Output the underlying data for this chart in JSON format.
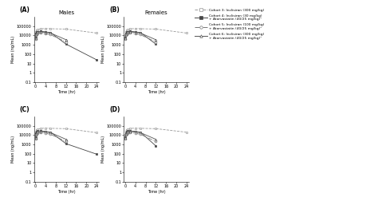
{
  "title_A": "Males",
  "title_B": "Females",
  "panel_labels": [
    "(A)",
    "(B)",
    "(C)",
    "(D)"
  ],
  "xlabel": "Time (hr)",
  "ylabel_top": "Mean (ng/mL)",
  "ylabel_bottom": "Mean (ng/mL)",
  "ylim_log": [
    0.1,
    1000000
  ],
  "xlim": [
    -0.5,
    25
  ],
  "xticks": [
    0,
    4,
    8,
    12,
    16,
    20,
    24
  ],
  "legend_labels": [
    "-- Cohort 3: Inclisiran (300 mg/kg)",
    "Cohort 4: Inclisiran (30 mg/kg)\n+ Atorvastatin (40/25 mg/kg)¹",
    "Cohort 5: Inclisiran (100 mg/kg)\n+ Atorvastatin (40/25 mg/kg)¹",
    "Cohort 6: Inclisiran (300 mg/kg)\n+ Atorvastatin (40/25 mg/kg)¹"
  ],
  "legend_labels_short": [
    "Cohort 3: Inclisiran (300 mg/kg)",
    "Cohort 4: Inclisiran (30 mg/kg)\n+ Atorvastatin (40/25 mg/kg)¹",
    "Cohort 5: Inclisiran (100 mg/kg)\n+ Atorvastatin (40/25 mg/kg)¹",
    "Cohort 6: Inclisiran (300 mg/kg)\n+ Atorvastatin (40/25 mg/kg)¹"
  ],
  "time_points": [
    0.08,
    0.25,
    0.5,
    1,
    2,
    4,
    6,
    12,
    24
  ],
  "A_cohort3": [
    10000,
    25000,
    35000,
    42000,
    50000,
    55000,
    52000,
    48000,
    18000
  ],
  "A_cohort4": [
    6000,
    16000,
    22000,
    26000,
    28000,
    24000,
    20000,
    1200,
    25
  ],
  "A_cohort5": [
    4000,
    10000,
    14000,
    17000,
    18000,
    15000,
    12000,
    2000,
    null
  ],
  "A_cohort6": [
    5000,
    13000,
    19000,
    23000,
    24000,
    21000,
    18000,
    3500,
    null
  ],
  "B_cohort3": [
    10000,
    25000,
    35000,
    42000,
    50000,
    55000,
    52000,
    48000,
    18000
  ],
  "B_cohort4": [
    6000,
    16000,
    22000,
    26000,
    28000,
    24000,
    20000,
    1200,
    null
  ],
  "B_cohort5": [
    4000,
    10000,
    14000,
    17000,
    18000,
    15000,
    12000,
    2000,
    null
  ],
  "B_cohort6": [
    5000,
    13000,
    19000,
    23000,
    24000,
    21000,
    18000,
    3500,
    null
  ],
  "C_cohort3": [
    10000,
    25000,
    35000,
    42000,
    50000,
    55000,
    52000,
    48000,
    18000
  ],
  "C_cohort4": [
    6000,
    16000,
    22000,
    26000,
    28000,
    24000,
    20000,
    1200,
    90
  ],
  "C_cohort5": [
    4000,
    10000,
    14000,
    17000,
    18000,
    15000,
    12000,
    2000,
    null
  ],
  "C_cohort6": [
    5000,
    13000,
    19000,
    23000,
    24000,
    21000,
    18000,
    3500,
    null
  ],
  "D_cohort3": [
    10000,
    25000,
    35000,
    42000,
    50000,
    55000,
    52000,
    48000,
    20000
  ],
  "D_cohort4": [
    6000,
    16000,
    22000,
    26000,
    28000,
    24000,
    20000,
    700,
    null
  ],
  "D_cohort5": [
    4000,
    10000,
    14000,
    17000,
    18000,
    15000,
    12000,
    2000,
    null
  ],
  "D_cohort6": [
    5000,
    13000,
    19000,
    23000,
    24000,
    21000,
    18000,
    3500,
    null
  ],
  "colors": [
    "#999999",
    "#444444",
    "#777777",
    "#555555"
  ],
  "linestyles": [
    "--",
    "-",
    "-.",
    "-"
  ],
  "markers": [
    "s",
    "s",
    "o",
    "^"
  ],
  "markerfacecolors": [
    "white",
    "#444444",
    "white",
    "white"
  ],
  "markercolors": [
    "#999999",
    "#444444",
    "#777777",
    "#555555"
  ]
}
